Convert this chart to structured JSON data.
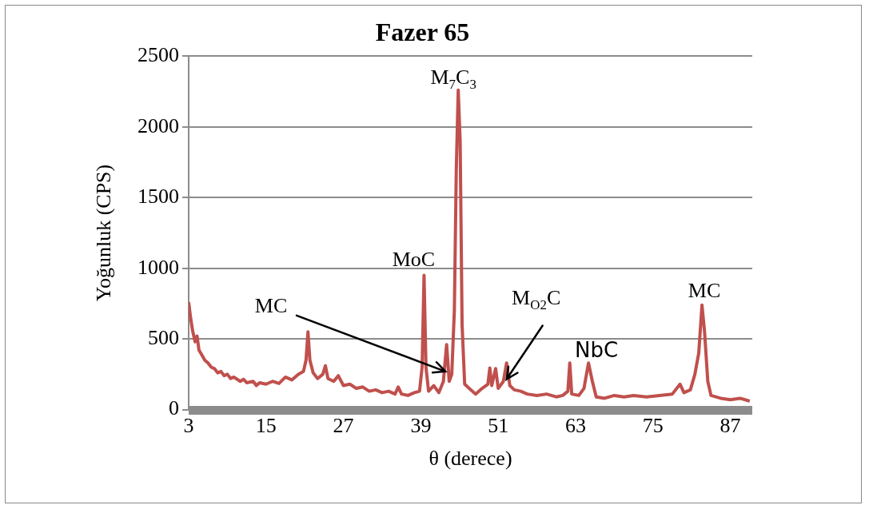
{
  "chart_data": {
    "type": "line",
    "title": "Fazer 65",
    "xlabel": "θ (derece)",
    "ylabel": "Yoğunluk (CPS)",
    "xlim": [
      3,
      90.4
    ],
    "xticks": [
      3,
      15,
      27,
      39,
      51,
      63,
      75,
      87
    ],
    "ylim": [
      0,
      2500
    ],
    "yticks": [
      0,
      500,
      1000,
      1500,
      2000,
      2500
    ],
    "grid": "y",
    "legend": false,
    "marker": "none",
    "line_style": "solid",
    "series": [
      {
        "color": "#c0504d",
        "x": [
          3,
          3.3,
          3.6,
          4,
          4.3,
          4.6,
          5,
          5.5,
          6,
          6.5,
          7,
          7.5,
          8,
          8.5,
          9,
          9.5,
          10,
          11,
          11.5,
          12,
          13,
          13.5,
          14,
          15,
          16,
          17,
          18,
          19,
          20,
          20.8,
          21.2,
          21.5,
          21.8,
          22.3,
          23,
          23.8,
          24.2,
          24.6,
          25.5,
          26.2,
          27,
          28,
          29,
          30,
          31,
          32,
          33,
          34,
          35,
          35.5,
          36,
          37,
          38,
          38.8,
          39.2,
          39.5,
          39.8,
          40.2,
          41,
          41.8,
          42.5,
          43,
          43.4,
          43.8,
          44.2,
          44.5,
          44.8,
          45.1,
          45.4,
          45.8,
          46.5,
          47.5,
          48.5,
          49.4,
          49.7,
          50,
          50.6,
          51,
          51.8,
          52.3,
          52.8,
          53.5,
          54.5,
          55.5,
          57,
          58.5,
          60,
          61,
          61.8,
          62.1,
          62.4,
          63.5,
          64.3,
          65,
          65.6,
          66.2,
          67.5,
          69,
          70.5,
          72,
          74,
          76,
          78,
          79.2,
          79.8,
          80.8,
          81.5,
          82.1,
          82.6,
          83,
          83.5,
          84,
          85.5,
          87,
          88.5,
          90
        ],
        "values": [
          760,
          650,
          560,
          480,
          520,
          420,
          390,
          350,
          330,
          300,
          290,
          260,
          270,
          240,
          250,
          220,
          230,
          200,
          215,
          190,
          200,
          170,
          190,
          180,
          200,
          185,
          230,
          210,
          250,
          270,
          350,
          550,
          350,
          260,
          220,
          250,
          310,
          220,
          200,
          240,
          170,
          180,
          150,
          160,
          130,
          140,
          120,
          130,
          110,
          160,
          110,
          100,
          120,
          130,
          300,
          950,
          300,
          130,
          170,
          120,
          200,
          460,
          200,
          250,
          700,
          1700,
          2260,
          1900,
          600,
          180,
          150,
          110,
          150,
          180,
          295,
          170,
          290,
          150,
          200,
          330,
          170,
          140,
          130,
          110,
          100,
          110,
          90,
          100,
          130,
          330,
          110,
          100,
          150,
          330,
          200,
          90,
          80,
          100,
          90,
          100,
          90,
          100,
          110,
          180,
          120,
          140,
          250,
          400,
          740,
          550,
          200,
          100,
          80,
          70,
          80,
          60
        ]
      }
    ],
    "annotations": [
      {
        "text": "M$_{7}$C$_{3}$",
        "x": 44.8,
        "y": 2260
      },
      {
        "text": "MoC",
        "x": 39.5,
        "y": 950
      },
      {
        "text": "MC",
        "x": 42.8,
        "y": 270
      },
      {
        "text": "M$_{O2}$C",
        "x": 52.3,
        "y": 215
      },
      {
        "text": "NbC",
        "x": 65,
        "y": 330
      },
      {
        "text": "MC",
        "x": 82.6,
        "y": 740
      }
    ]
  }
}
